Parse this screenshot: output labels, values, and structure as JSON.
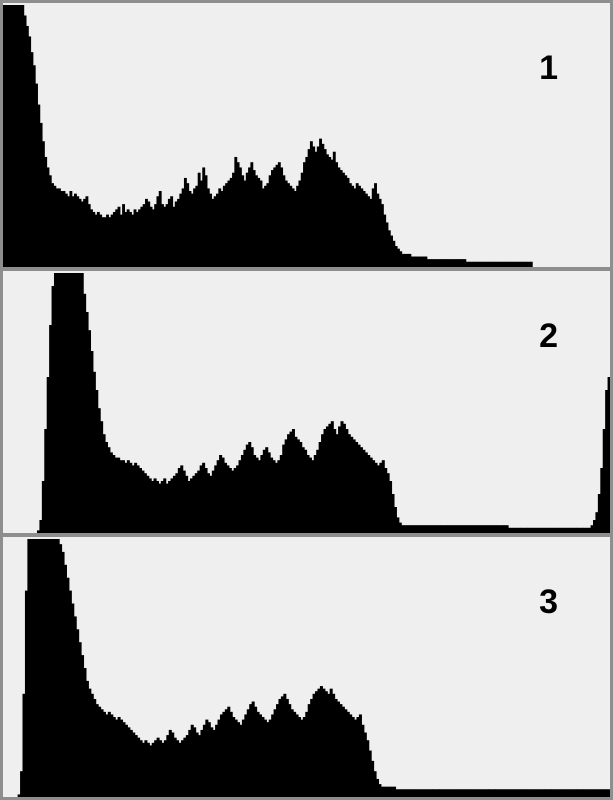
{
  "colors": {
    "background": "#efefef",
    "bars": "#000000",
    "border": "#8e8e8e"
  },
  "chart_data": [
    {
      "type": "bar",
      "label": "1",
      "x_range": [
        0,
        255
      ],
      "ylim": [
        0,
        100
      ],
      "grid": false,
      "values": [
        100,
        100,
        100,
        100,
        100,
        100,
        100,
        100,
        100,
        96,
        92,
        88,
        82,
        77,
        70,
        62,
        55,
        48,
        42,
        38,
        35,
        32,
        31,
        30,
        30,
        29,
        29,
        28,
        27,
        29,
        27,
        28,
        27,
        26,
        25,
        26,
        27,
        24,
        22,
        21,
        20,
        21,
        20,
        19,
        19,
        20,
        19,
        20,
        21,
        22,
        23,
        20,
        24,
        21,
        22,
        21,
        20,
        22,
        21,
        22,
        23,
        24,
        26,
        25,
        23,
        22,
        24,
        27,
        29,
        24,
        23,
        24,
        26,
        27,
        23,
        25,
        26,
        28,
        30,
        34,
        32,
        29,
        28,
        30,
        31,
        36,
        33,
        38,
        35,
        30,
        28,
        26,
        27,
        28,
        30,
        29,
        31,
        32,
        33,
        34,
        36,
        42,
        40,
        38,
        35,
        33,
        36,
        38,
        40,
        37,
        35,
        34,
        33,
        30,
        31,
        32,
        35,
        37,
        38,
        39,
        40,
        38,
        35,
        33,
        32,
        31,
        30,
        29,
        31,
        33,
        36,
        40,
        42,
        45,
        48,
        46,
        44,
        46,
        49,
        47,
        45,
        43,
        42,
        41,
        44,
        40,
        38,
        37,
        36,
        35,
        34,
        32,
        31,
        30,
        32,
        31,
        30,
        29,
        28,
        27,
        26,
        30,
        32,
        28,
        26,
        24,
        20,
        17,
        14,
        12,
        10,
        8,
        7,
        6,
        5,
        5,
        5,
        5,
        4,
        4,
        4,
        4,
        4,
        4,
        4,
        3,
        3,
        3,
        3,
        3,
        3,
        3,
        3,
        3,
        3,
        3,
        3,
        3,
        3,
        3,
        3,
        3,
        2,
        2,
        2,
        2,
        2,
        2,
        2,
        2,
        2,
        2,
        2,
        2,
        2,
        2,
        2,
        2,
        2,
        2,
        2,
        2,
        2,
        2,
        2,
        2,
        2,
        2,
        2,
        2,
        2,
        0,
        0,
        0,
        0,
        0,
        0,
        0,
        0,
        0,
        0,
        0,
        0,
        0,
        0,
        0,
        0,
        0,
        0,
        0,
        0,
        0,
        0,
        0,
        0,
        0,
        0,
        0,
        0,
        0,
        0,
        0,
        0,
        0,
        0
      ]
    },
    {
      "type": "bar",
      "label": "2",
      "x_range": [
        0,
        255
      ],
      "ylim": [
        0,
        100
      ],
      "grid": false,
      "values": [
        0,
        0,
        0,
        0,
        0,
        0,
        0,
        0,
        0,
        0,
        0,
        0,
        0,
        0,
        1,
        5,
        20,
        40,
        60,
        80,
        95,
        100,
        100,
        100,
        100,
        100,
        100,
        100,
        100,
        100,
        100,
        100,
        100,
        92,
        85,
        78,
        70,
        62,
        55,
        48,
        43,
        38,
        35,
        33,
        31,
        30,
        29,
        29,
        28,
        28,
        27,
        28,
        27,
        26,
        27,
        26,
        25,
        24,
        23,
        22,
        21,
        20,
        21,
        20,
        19,
        20,
        21,
        19,
        20,
        21,
        22,
        23,
        25,
        26,
        24,
        22,
        20,
        21,
        22,
        23,
        24,
        26,
        27,
        25,
        23,
        22,
        24,
        26,
        28,
        30,
        29,
        27,
        26,
        25,
        24,
        25,
        26,
        28,
        30,
        32,
        34,
        35,
        33,
        30,
        29,
        28,
        30,
        32,
        33,
        31,
        29,
        28,
        27,
        28,
        30,
        34,
        36,
        38,
        39,
        40,
        37,
        36,
        35,
        33,
        32,
        30,
        29,
        28,
        30,
        32,
        35,
        38,
        40,
        41,
        42,
        43,
        40,
        38,
        41,
        43,
        42,
        40,
        38,
        37,
        36,
        35,
        34,
        33,
        32,
        31,
        30,
        29,
        28,
        27,
        26,
        27,
        28,
        25,
        23,
        20,
        15,
        10,
        6,
        4,
        3,
        3,
        3,
        3,
        3,
        3,
        3,
        3,
        3,
        3,
        3,
        3,
        3,
        3,
        3,
        3,
        3,
        3,
        3,
        3,
        3,
        3,
        3,
        3,
        3,
        3,
        3,
        3,
        3,
        3,
        3,
        3,
        3,
        3,
        3,
        3,
        3,
        3,
        3,
        3,
        3,
        3,
        3,
        3,
        2,
        2,
        2,
        2,
        2,
        2,
        2,
        2,
        2,
        2,
        2,
        2,
        2,
        2,
        2,
        2,
        2,
        2,
        2,
        2,
        2,
        2,
        2,
        2,
        2,
        2,
        2,
        2,
        2,
        2,
        2,
        2,
        2,
        2,
        3,
        5,
        8,
        15,
        25,
        40,
        55,
        60
      ]
    },
    {
      "type": "bar",
      "label": "3",
      "x_range": [
        0,
        255
      ],
      "ylim": [
        0,
        100
      ],
      "grid": false,
      "values": [
        0,
        0,
        0,
        0,
        0,
        0,
        1,
        10,
        40,
        80,
        100,
        100,
        100,
        100,
        100,
        100,
        100,
        100,
        100,
        100,
        100,
        100,
        100,
        98,
        95,
        90,
        85,
        80,
        75,
        70,
        65,
        60,
        55,
        50,
        45,
        42,
        40,
        38,
        36,
        35,
        34,
        33,
        32,
        33,
        32,
        31,
        30,
        31,
        30,
        29,
        28,
        27,
        26,
        25,
        24,
        23,
        22,
        21,
        22,
        21,
        20,
        21,
        22,
        23,
        22,
        21,
        22,
        24,
        26,
        25,
        23,
        22,
        21,
        22,
        23,
        24,
        26,
        28,
        27,
        25,
        24,
        26,
        28,
        30,
        29,
        27,
        26,
        28,
        30,
        32,
        33,
        34,
        35,
        33,
        31,
        30,
        29,
        28,
        30,
        32,
        34,
        36,
        37,
        35,
        33,
        32,
        31,
        30,
        29,
        30,
        32,
        34,
        36,
        38,
        39,
        40,
        38,
        36,
        34,
        33,
        32,
        31,
        30,
        31,
        33,
        36,
        38,
        40,
        41,
        42,
        43,
        42,
        41,
        40,
        42,
        40,
        38,
        37,
        36,
        35,
        34,
        33,
        32,
        31,
        30,
        31,
        32,
        28,
        25,
        22,
        18,
        14,
        10,
        7,
        5,
        4,
        4,
        4,
        4,
        4,
        4,
        3,
        3,
        3,
        3,
        3,
        3,
        3,
        3,
        3,
        3,
        3,
        3,
        3,
        3,
        3,
        3,
        3,
        3,
        3,
        3,
        3,
        3,
        3,
        3,
        3,
        3,
        3,
        3,
        3,
        3,
        3,
        3,
        3,
        3,
        3,
        3,
        3,
        3,
        3,
        3,
        3,
        3,
        3,
        3,
        3,
        3,
        3,
        3,
        3,
        3,
        3,
        3,
        3,
        3,
        3,
        3,
        3,
        3,
        3,
        3,
        3,
        3,
        3,
        3,
        3,
        3,
        3,
        3,
        3,
        3,
        3,
        3,
        3,
        3,
        3,
        3,
        3,
        3,
        3,
        3,
        3,
        3,
        3,
        3,
        3,
        3,
        3,
        3
      ]
    }
  ]
}
